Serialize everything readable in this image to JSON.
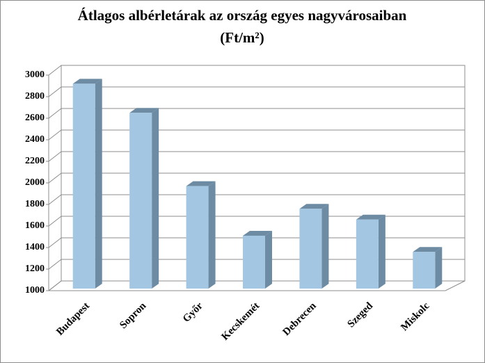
{
  "chart_data": {
    "type": "bar3d",
    "title": [
      "Átlagos albérletárak az ország egyes nagyvárosaiban",
      "(Ft/m²)"
    ],
    "categories": [
      "Budapest",
      "Sopron",
      "Győr",
      "Kecskemét",
      "Debrecen",
      "Szeged",
      "Miskolc"
    ],
    "values": [
      2920,
      2650,
      1970,
      1510,
      1760,
      1660,
      1360
    ],
    "color": "#a3c7e2",
    "ylim": [
      1000,
      3000
    ],
    "yticks": [
      1000,
      1200,
      1400,
      1600,
      1800,
      2000,
      2200,
      2400,
      2600,
      2800,
      3000
    ],
    "grid": true
  }
}
